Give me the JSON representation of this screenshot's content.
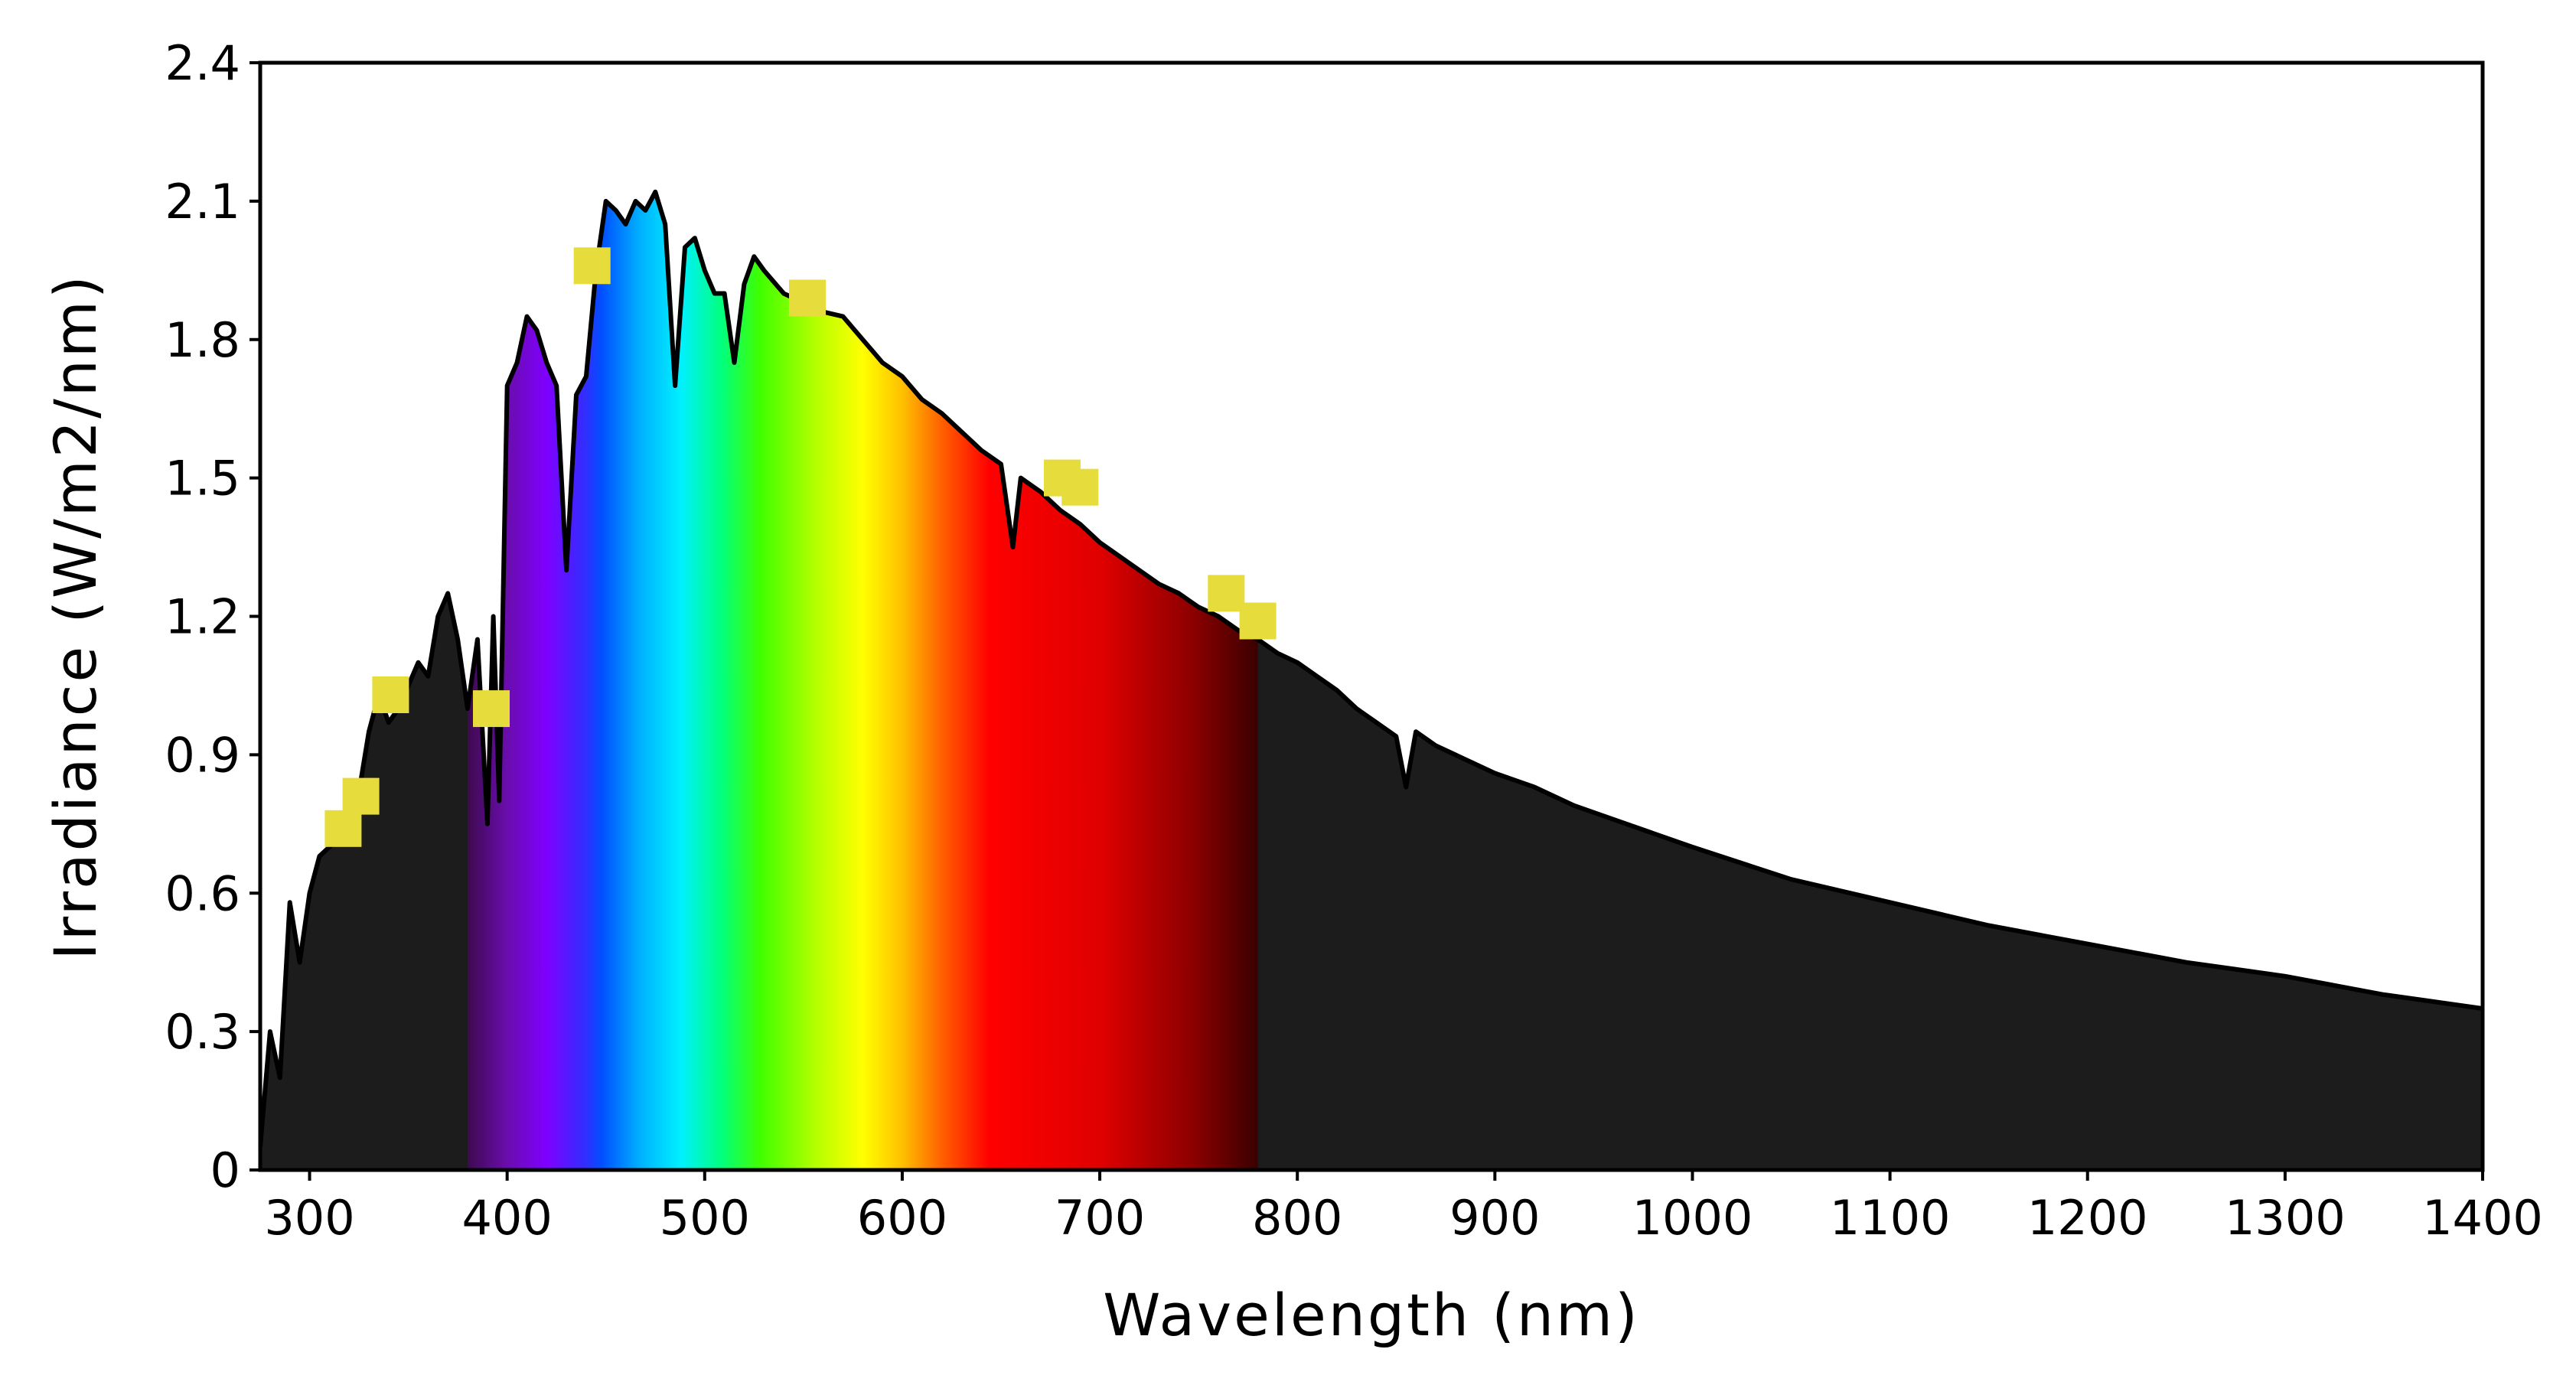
{
  "chart_data": {
    "type": "area",
    "title": "",
    "xlabel": "Wavelength (nm)",
    "ylabel": "Irradiance (W/m2/nm)",
    "xlim": [
      275,
      1400
    ],
    "ylim": [
      0,
      2.4
    ],
    "xticks": [
      300,
      400,
      500,
      600,
      700,
      800,
      900,
      1000,
      1100,
      1200,
      1300,
      1400
    ],
    "xtick_labels": [
      "300",
      "400",
      "500",
      "600",
      "700",
      "800",
      "900",
      "1000",
      "1100",
      "1200",
      "1300",
      "1400"
    ],
    "yticks": [
      0,
      0.3,
      0.6,
      0.9,
      1.2,
      1.5,
      1.8,
      2.1,
      2.4
    ],
    "ytick_labels": [
      "0",
      "0.3",
      "0.6",
      "0.9",
      "1.2",
      "1.5",
      "1.8",
      "2.1",
      "2.4"
    ],
    "grid": false,
    "legend": "none",
    "series": [
      {
        "x": [
          275,
          280,
          285,
          290,
          295,
          300,
          305,
          310,
          315,
          320,
          325,
          330,
          335,
          340,
          345,
          350,
          355,
          360,
          365,
          370,
          375,
          380,
          385,
          390,
          393,
          396,
          400,
          405,
          410,
          415,
          420,
          425,
          430,
          435,
          440,
          445,
          450,
          455,
          460,
          465,
          470,
          475,
          480,
          485,
          490,
          495,
          500,
          505,
          510,
          515,
          520,
          525,
          530,
          540,
          550,
          560,
          570,
          580,
          590,
          600,
          610,
          620,
          630,
          640,
          650,
          656,
          660,
          670,
          680,
          690,
          700,
          710,
          720,
          730,
          740,
          750,
          760,
          770,
          780,
          790,
          800,
          810,
          820,
          830,
          840,
          850,
          855,
          860,
          870,
          880,
          900,
          920,
          940,
          960,
          980,
          1000,
          1050,
          1100,
          1150,
          1200,
          1250,
          1300,
          1350,
          1400
        ],
        "y": [
          0.05,
          0.3,
          0.2,
          0.58,
          0.45,
          0.6,
          0.68,
          0.7,
          0.72,
          0.78,
          0.82,
          0.95,
          1.03,
          0.97,
          1.0,
          1.05,
          1.1,
          1.07,
          1.2,
          1.25,
          1.15,
          1.0,
          1.15,
          0.75,
          1.2,
          0.8,
          1.7,
          1.75,
          1.85,
          1.82,
          1.75,
          1.7,
          1.3,
          1.68,
          1.72,
          1.95,
          2.1,
          2.08,
          2.05,
          2.1,
          2.08,
          2.12,
          2.05,
          1.7,
          2.0,
          2.02,
          1.95,
          1.9,
          1.9,
          1.75,
          1.92,
          1.98,
          1.95,
          1.9,
          1.88,
          1.86,
          1.85,
          1.8,
          1.75,
          1.72,
          1.67,
          1.64,
          1.6,
          1.56,
          1.53,
          1.35,
          1.5,
          1.47,
          1.43,
          1.4,
          1.36,
          1.33,
          1.3,
          1.27,
          1.25,
          1.22,
          1.2,
          1.17,
          1.15,
          1.12,
          1.1,
          1.07,
          1.04,
          1.0,
          0.97,
          0.94,
          0.83,
          0.95,
          0.92,
          0.9,
          0.86,
          0.83,
          0.79,
          0.76,
          0.73,
          0.7,
          0.63,
          0.58,
          0.53,
          0.49,
          0.45,
          0.42,
          0.38,
          0.35
        ]
      }
    ],
    "markers": {
      "type": "scatter",
      "x": [
        317,
        326,
        341,
        392,
        443,
        552,
        681,
        690,
        764,
        780
      ],
      "y": [
        0.74,
        0.81,
        1.03,
        1.0,
        1.96,
        1.89,
        1.5,
        1.48,
        1.25,
        1.19
      ]
    },
    "visible_band_nm": [
      380,
      780
    ],
    "colors": {
      "background": "#ffffff",
      "area_fill": "#1c1c1c",
      "curve_line": "#000000",
      "marker": "#e6dc3c",
      "axis": "#000000"
    }
  }
}
